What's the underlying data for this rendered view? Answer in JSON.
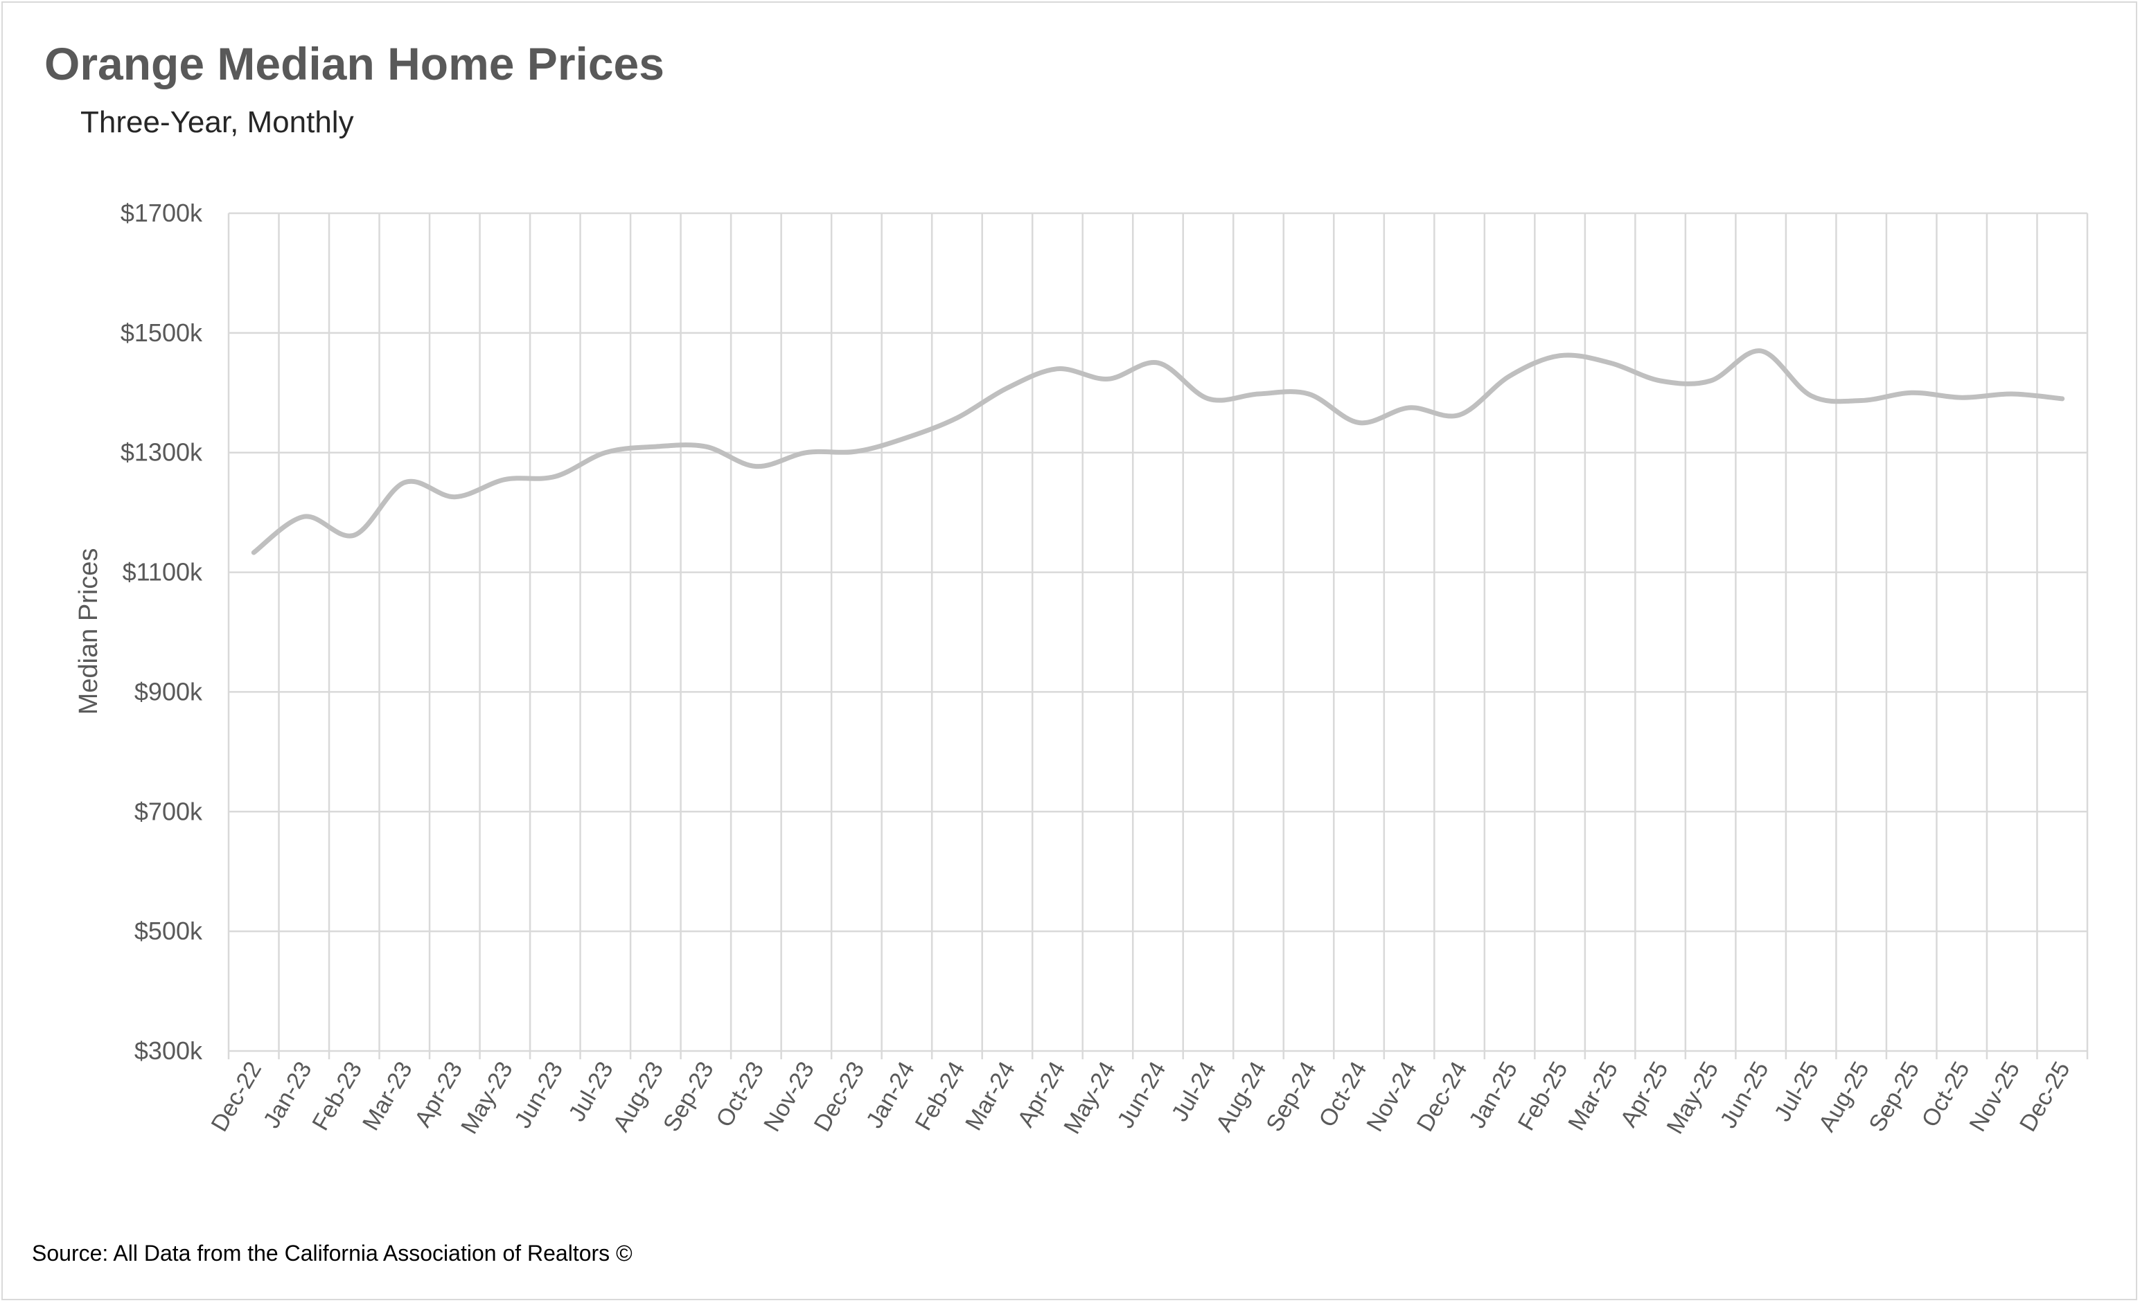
{
  "chart_data": {
    "type": "line",
    "title": "Orange Median Home Prices",
    "subtitle": "Three-Year, Monthly",
    "ylabel": "Median Prices",
    "xlabel": "",
    "source": "Source: All Data from the California Association of Realtors ©",
    "ylim": [
      300,
      1700
    ],
    "y_ticks": [
      300,
      500,
      700,
      900,
      1100,
      1300,
      1500,
      1700
    ],
    "y_tick_labels": [
      "$300k",
      "$500k",
      "$700k",
      "$900k",
      "$1100k",
      "$1300k",
      "$1500k",
      "$1700k"
    ],
    "grid": true,
    "line_color": "#bfbfbf",
    "grid_color": "#d9d9d9",
    "categories": [
      "Dec-22",
      "Jan-23",
      "Feb-23",
      "Mar-23",
      "Apr-23",
      "May-23",
      "Jun-23",
      "Jul-23",
      "Aug-23",
      "Sep-23",
      "Oct-23",
      "Nov-23",
      "Dec-23",
      "Jan-24",
      "Feb-24",
      "Mar-24",
      "Apr-24",
      "May-24",
      "Jun-24",
      "Jul-24",
      "Aug-24",
      "Sep-24",
      "Oct-24",
      "Nov-24",
      "Dec-24",
      "Jan-25",
      "Feb-25",
      "Mar-25",
      "Apr-25",
      "May-25",
      "Jun-25",
      "Jul-25",
      "Aug-25",
      "Sep-25",
      "Oct-25",
      "Nov-25",
      "Dec-25"
    ],
    "series": [
      {
        "values": [
          1133,
          1193,
          1162,
          1250,
          1226,
          1255,
          1260,
          1300,
          1310,
          1310,
          1277,
          1300,
          1302,
          1325,
          1358,
          1408,
          1440,
          1423,
          1450,
          1390,
          1398,
          1398,
          1350,
          1375,
          1363,
          1428,
          1462,
          1450,
          1420,
          1420,
          1470,
          1395,
          1387,
          1400,
          1392,
          1398,
          1390
        ]
      }
    ]
  }
}
